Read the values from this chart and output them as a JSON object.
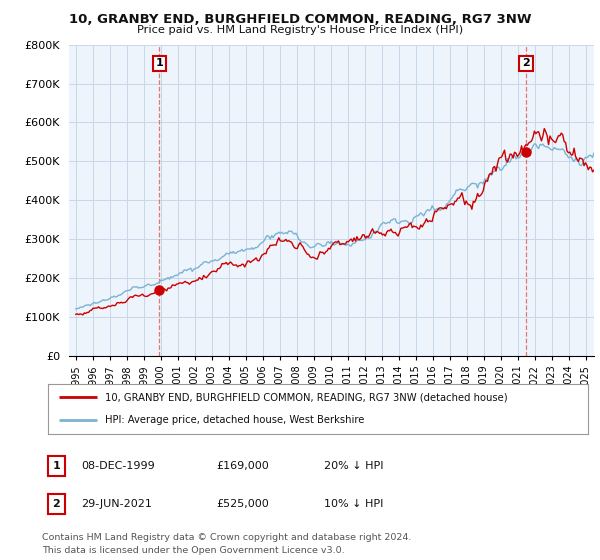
{
  "title": "10, GRANBY END, BURGHFIELD COMMON, READING, RG7 3NW",
  "subtitle": "Price paid vs. HM Land Registry's House Price Index (HPI)",
  "ylabel_ticks": [
    "£0",
    "£100K",
    "£200K",
    "£300K",
    "£400K",
    "£500K",
    "£600K",
    "£700K",
    "£800K"
  ],
  "ytick_values": [
    0,
    100000,
    200000,
    300000,
    400000,
    500000,
    600000,
    700000,
    800000
  ],
  "ylim": [
    0,
    800000
  ],
  "hpi_color": "#7ab3d4",
  "price_color": "#cc0000",
  "marker1_year": 1999.92,
  "marker1_price": 169000,
  "marker2_year": 2021.49,
  "marker2_price": 525000,
  "vline_color": "#e06060",
  "legend_line1": "10, GRANBY END, BURGHFIELD COMMON, READING, RG7 3NW (detached house)",
  "legend_line2": "HPI: Average price, detached house, West Berkshire",
  "table_row1": [
    "1",
    "08-DEC-1999",
    "£169,000",
    "20% ↓ HPI"
  ],
  "table_row2": [
    "2",
    "29-JUN-2021",
    "£525,000",
    "10% ↓ HPI"
  ],
  "footnote": "Contains HM Land Registry data © Crown copyright and database right 2024.\nThis data is licensed under the Open Government Licence v3.0.",
  "bg_color": "#eef4fb",
  "grid_color": "#c8d8e8",
  "fig_bg": "#ffffff"
}
